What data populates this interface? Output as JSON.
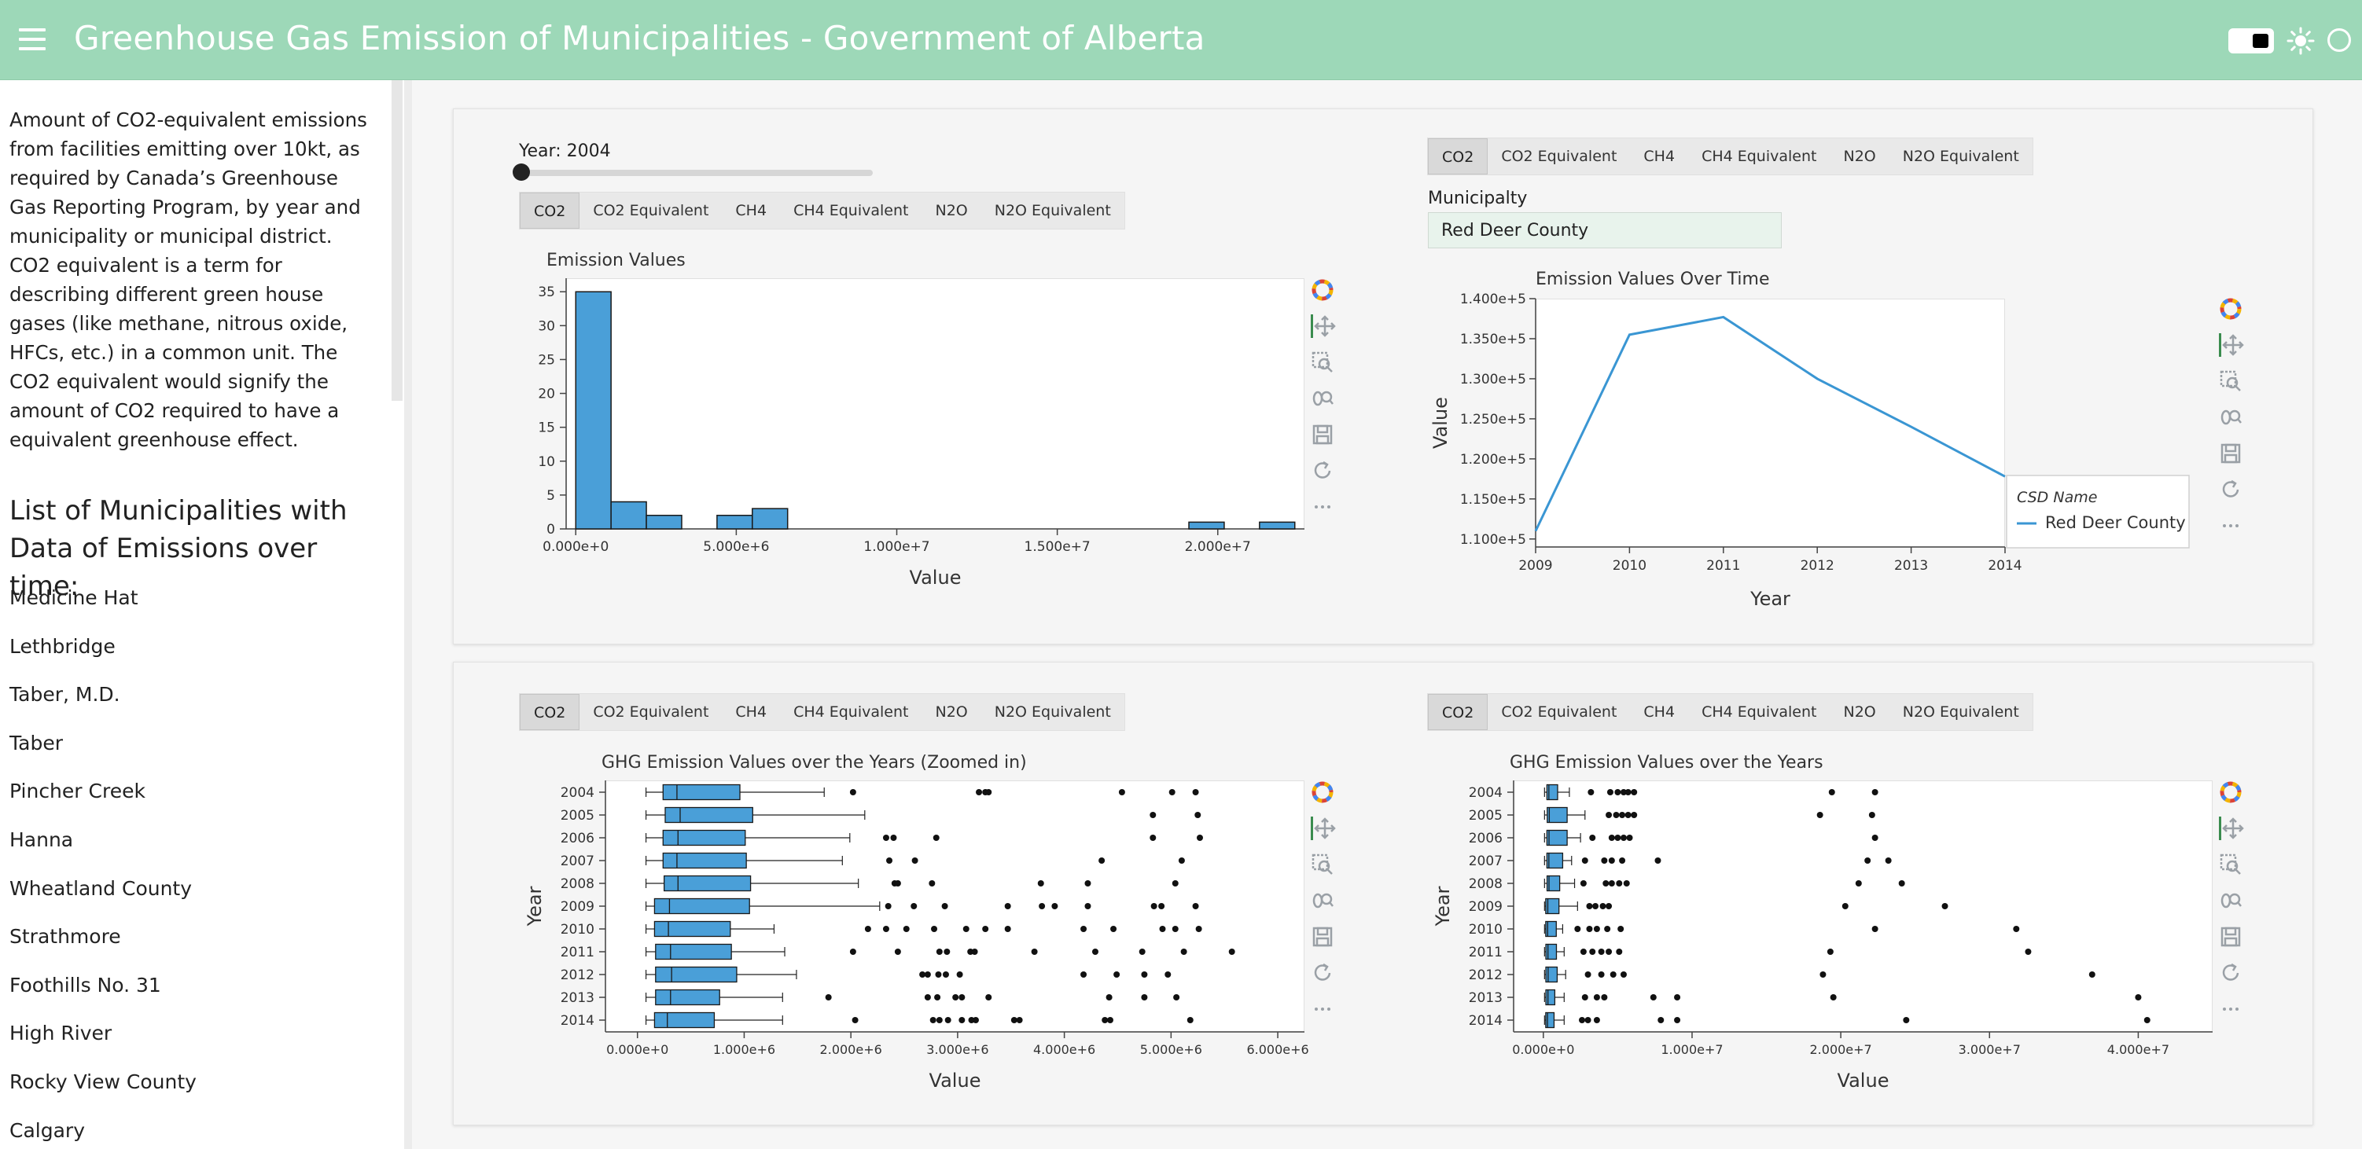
{
  "header": {
    "title": "Greenhouse Gas Emission of Municipalities - Government of Alberta"
  },
  "sidebar": {
    "description": "Amount of CO2-equivalent emissions from facilities emitting over 10kt, as required by Canada’s Greenhouse Gas Reporting Program, by year and municipality or municipal district. CO2 equivalent is a term for describing different green house gases (like methane, nitrous oxide, HFCs, etc.) in a common unit. The CO2 equivalent would signify the amount of CO2 required to have a equivalent greenhouse effect.",
    "list_title": "List of Municipalities with Data of Emissions over time:",
    "municipalities": [
      "Medicine Hat",
      "Lethbridge",
      "Taber, M.D.",
      "Taber",
      "Pincher Creek",
      "Hanna",
      "Wheatland County",
      "Strathmore",
      "Foothills No. 31",
      "High River",
      "Rocky View County",
      "Calgary"
    ]
  },
  "gas_tabs": [
    "CO2",
    "CO2 Equivalent",
    "CH4",
    "CH4 Equivalent",
    "N2O",
    "N2O Equivalent"
  ],
  "active_tab": "CO2",
  "year_slider": {
    "label": "Year: 2004",
    "value": 2004,
    "fraction": 0.0
  },
  "municipality_field": {
    "label": "Municipalty",
    "value": "Red Deer County"
  },
  "colors": {
    "bar": "#4a9fd8",
    "line": "#3a96d3",
    "header": "#9dd8b8"
  },
  "tools": [
    "bokeh-logo-icon",
    "pan-icon",
    "box-zoom-icon",
    "wheel-zoom-icon",
    "save-icon",
    "reset-icon",
    "more-icon"
  ],
  "chart_data": [
    {
      "type": "bar",
      "title": "Emission Values",
      "xlabel": "Value",
      "ylabel": "",
      "xlim": [
        -300000,
        22700000
      ],
      "ylim": [
        0,
        37
      ],
      "xticks": [
        0,
        5000000,
        10000000,
        15000000,
        20000000
      ],
      "xtick_labels": [
        "0.000e+0",
        "5.000e+6",
        "1.000e+7",
        "1.500e+7",
        "2.000e+7"
      ],
      "yticks": [
        0,
        5,
        10,
        15,
        20,
        25,
        30,
        35
      ],
      "ytick_labels": [
        "0",
        "5",
        "10",
        "15",
        "20",
        "25",
        "30",
        "35"
      ],
      "bins": [
        {
          "x0": 0,
          "x1": 1100000,
          "count": 35
        },
        {
          "x0": 1100000,
          "x1": 2200000,
          "count": 4
        },
        {
          "x0": 2200000,
          "x1": 3300000,
          "count": 2
        },
        {
          "x0": 4400000,
          "x1": 5500000,
          "count": 2
        },
        {
          "x0": 5500000,
          "x1": 6600000,
          "count": 3
        },
        {
          "x0": 19100000,
          "x1": 20200000,
          "count": 1
        },
        {
          "x0": 21300000,
          "x1": 22400000,
          "count": 1
        }
      ]
    },
    {
      "type": "line",
      "title": "Emission Values Over Time",
      "xlabel": "Year",
      "ylabel": "Value",
      "xlim": [
        2009,
        2014
      ],
      "ylim": [
        109000,
        140000
      ],
      "xticks": [
        2009,
        2010,
        2011,
        2012,
        2013,
        2014
      ],
      "yticks": [
        110000,
        115000,
        120000,
        125000,
        130000,
        135000,
        140000
      ],
      "ytick_labels": [
        "1.100e+5",
        "1.150e+5",
        "1.200e+5",
        "1.250e+5",
        "1.300e+5",
        "1.350e+5",
        "1.400e+5"
      ],
      "legend": {
        "title": "CSD Name",
        "placement": "bottom-right"
      },
      "series": [
        {
          "name": "Red Deer County",
          "x": [
            2009,
            2010,
            2011,
            2012,
            2013,
            2014
          ],
          "y": [
            111000,
            135500,
            137700,
            130000,
            124000,
            117800
          ]
        }
      ]
    },
    {
      "type": "boxplot",
      "title": "GHG Emission Values over the Years (Zoomed in)",
      "xlabel": "Value",
      "ylabel": "Year",
      "xlim": [
        -300000,
        6250000
      ],
      "xticks": [
        0,
        1000000,
        2000000,
        3000000,
        4000000,
        5000000,
        6000000
      ],
      "xtick_labels": [
        "0.000e+0",
        "1.000e+6",
        "2.000e+6",
        "3.000e+6",
        "4.000e+6",
        "5.000e+6",
        "6.000e+6"
      ],
      "categories": [
        "2004",
        "2005",
        "2006",
        "2007",
        "2008",
        "2009",
        "2010",
        "2011",
        "2012",
        "2013",
        "2014"
      ],
      "boxes": [
        {
          "min": 80000,
          "q1": 240000,
          "median": 370000,
          "q3": 960000,
          "max": 1750000,
          "outliers": [
            2020000,
            3200000,
            3260000,
            3290000,
            4540000,
            5010000,
            5230000
          ]
        },
        {
          "min": 80000,
          "q1": 260000,
          "median": 400000,
          "q3": 1080000,
          "max": 2130000,
          "outliers": [
            4830000,
            5250000
          ]
        },
        {
          "min": 80000,
          "q1": 240000,
          "median": 380000,
          "q3": 1010000,
          "max": 1990000,
          "outliers": [
            2330000,
            2400000,
            2800000,
            4830000,
            5270000
          ]
        },
        {
          "min": 80000,
          "q1": 240000,
          "median": 370000,
          "q3": 1020000,
          "max": 1920000,
          "outliers": [
            2360000,
            2600000,
            4350000,
            5100000
          ]
        },
        {
          "min": 80000,
          "q1": 250000,
          "median": 380000,
          "q3": 1060000,
          "max": 2070000,
          "outliers": [
            2410000,
            2440000,
            2760000,
            3780000,
            4220000,
            5040000
          ]
        },
        {
          "min": 80000,
          "q1": 160000,
          "median": 300000,
          "q3": 1050000,
          "max": 2270000,
          "outliers": [
            2350000,
            2590000,
            2880000,
            3470000,
            3790000,
            3910000,
            4220000,
            4840000,
            4910000,
            5230000
          ]
        },
        {
          "min": 80000,
          "q1": 160000,
          "median": 290000,
          "q3": 870000,
          "max": 1280000,
          "outliers": [
            2160000,
            2330000,
            2520000,
            2780000,
            3080000,
            3260000,
            3470000,
            4180000,
            4460000,
            4920000,
            5040000,
            5260000
          ]
        },
        {
          "min": 80000,
          "q1": 170000,
          "median": 310000,
          "q3": 880000,
          "max": 1380000,
          "outliers": [
            2020000,
            2440000,
            2830000,
            2900000,
            3120000,
            3160000,
            3720000,
            4290000,
            4730000,
            5120000,
            5570000
          ]
        },
        {
          "min": 80000,
          "q1": 170000,
          "median": 320000,
          "q3": 930000,
          "max": 1490000,
          "outliers": [
            2670000,
            2720000,
            2820000,
            2890000,
            3020000,
            4180000,
            4490000,
            4750000,
            4970000
          ]
        },
        {
          "min": 80000,
          "q1": 170000,
          "median": 310000,
          "q3": 770000,
          "max": 1360000,
          "outliers": [
            1790000,
            2720000,
            2810000,
            2980000,
            3040000,
            3290000,
            4420000,
            4750000,
            5050000
          ]
        },
        {
          "min": 80000,
          "q1": 160000,
          "median": 280000,
          "q3": 720000,
          "max": 1360000,
          "outliers": [
            2040000,
            2770000,
            2830000,
            2910000,
            3040000,
            3130000,
            3170000,
            3530000,
            3580000,
            4380000,
            4430000,
            5180000
          ]
        }
      ]
    },
    {
      "type": "boxplot",
      "title": "GHG Emission Values over the Years",
      "xlabel": "Value",
      "ylabel": "Year",
      "xlim": [
        -2000000,
        45000000
      ],
      "xticks": [
        0,
        10000000,
        20000000,
        30000000,
        40000000
      ],
      "xtick_labels": [
        "0.000e+0",
        "1.000e+7",
        "2.000e+7",
        "3.000e+7",
        "4.000e+7"
      ],
      "categories": [
        "2004",
        "2005",
        "2006",
        "2007",
        "2008",
        "2009",
        "2010",
        "2011",
        "2012",
        "2013",
        "2014"
      ],
      "boxes": [
        {
          "min": 80000,
          "q1": 240000,
          "median": 370000,
          "q3": 960000,
          "max": 1750000,
          "outliers": [
            3200000,
            4500000,
            5000000,
            5400000,
            5700000,
            6100000,
            19400000,
            22300000
          ]
        },
        {
          "min": 80000,
          "q1": 260000,
          "median": 400000,
          "q3": 1600000,
          "max": 2800000,
          "outliers": [
            4400000,
            4900000,
            5300000,
            5700000,
            6100000,
            18600000,
            22100000
          ]
        },
        {
          "min": 80000,
          "q1": 240000,
          "median": 380000,
          "q3": 1600000,
          "max": 2500000,
          "outliers": [
            3300000,
            4600000,
            5000000,
            5400000,
            5800000,
            22300000
          ]
        },
        {
          "min": 80000,
          "q1": 240000,
          "median": 370000,
          "q3": 1300000,
          "max": 1900000,
          "outliers": [
            2800000,
            4100000,
            4600000,
            5300000,
            7700000,
            21800000,
            23200000
          ]
        },
        {
          "min": 80000,
          "q1": 250000,
          "median": 380000,
          "q3": 1100000,
          "max": 2100000,
          "outliers": [
            2700000,
            4200000,
            4600000,
            5100000,
            5600000,
            21200000,
            24100000
          ]
        },
        {
          "min": 80000,
          "q1": 160000,
          "median": 300000,
          "q3": 1050000,
          "max": 2300000,
          "outliers": [
            3100000,
            3500000,
            4000000,
            4400000,
            20300000,
            27000000
          ]
        },
        {
          "min": 80000,
          "q1": 160000,
          "median": 290000,
          "q3": 870000,
          "max": 1300000,
          "outliers": [
            2300000,
            3100000,
            3600000,
            4300000,
            5200000,
            22300000,
            31800000
          ]
        },
        {
          "min": 80000,
          "q1": 170000,
          "median": 310000,
          "q3": 880000,
          "max": 1400000,
          "outliers": [
            2700000,
            3300000,
            3900000,
            4400000,
            5100000,
            19300000,
            32600000
          ]
        },
        {
          "min": 80000,
          "q1": 170000,
          "median": 320000,
          "q3": 930000,
          "max": 1500000,
          "outliers": [
            3000000,
            3900000,
            4700000,
            5400000,
            18800000,
            36900000
          ]
        },
        {
          "min": 80000,
          "q1": 170000,
          "median": 310000,
          "q3": 770000,
          "max": 1400000,
          "outliers": [
            2800000,
            3600000,
            4100000,
            7400000,
            9000000,
            19500000,
            40000000
          ]
        },
        {
          "min": 80000,
          "q1": 160000,
          "median": 280000,
          "q3": 720000,
          "max": 1400000,
          "outliers": [
            2600000,
            3000000,
            3600000,
            7900000,
            9000000,
            24400000,
            40600000
          ]
        }
      ]
    }
  ]
}
